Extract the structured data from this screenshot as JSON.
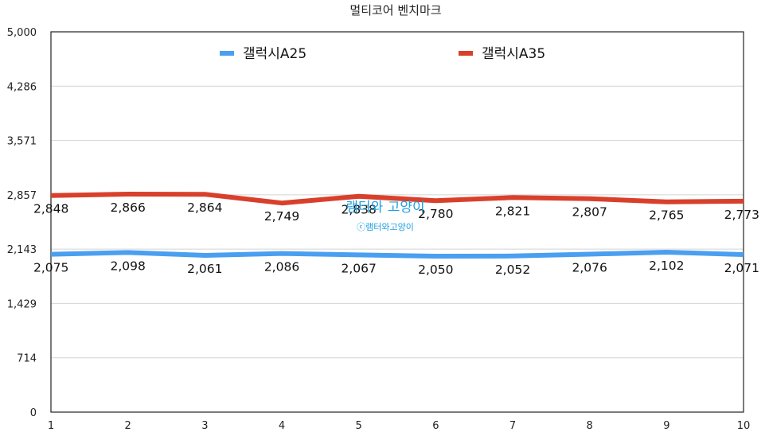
{
  "chart_data": {
    "type": "line",
    "title": "멀티코어 벤치마크",
    "x": [
      1,
      2,
      3,
      4,
      5,
      6,
      7,
      8,
      9,
      10
    ],
    "ylim": [
      0,
      5000
    ],
    "yticks": [
      0,
      714,
      1429,
      2143,
      2857,
      3571,
      4286,
      5000
    ],
    "ytick_labels": [
      "0",
      "714",
      "1,429",
      "2,143",
      "2,857",
      "3,571",
      "4,286",
      "5,000"
    ],
    "grid": true,
    "legend_position": "top",
    "series": [
      {
        "name": "갤럭시A25",
        "color": "#4a9ff0",
        "values": [
          2075,
          2098,
          2061,
          2086,
          2067,
          2050,
          2052,
          2076,
          2102,
          2071
        ],
        "labels": [
          "2,075",
          "2,098",
          "2,061",
          "2,086",
          "2,067",
          "2,050",
          "2,052",
          "2,076",
          "2,102",
          "2,071"
        ]
      },
      {
        "name": "갤럭시A35",
        "color": "#d9402b",
        "values": [
          2848,
          2866,
          2864,
          2749,
          2838,
          2780,
          2821,
          2807,
          2765,
          2773
        ],
        "labels": [
          "2,848",
          "2,866",
          "2,864",
          "2,749",
          "2,838",
          "2,780",
          "2,821",
          "2,807",
          "2,765",
          "2,773"
        ]
      }
    ]
  },
  "watermark": {
    "main": "램터와 고양이",
    "sub": "ⓒ램터와고양이"
  }
}
